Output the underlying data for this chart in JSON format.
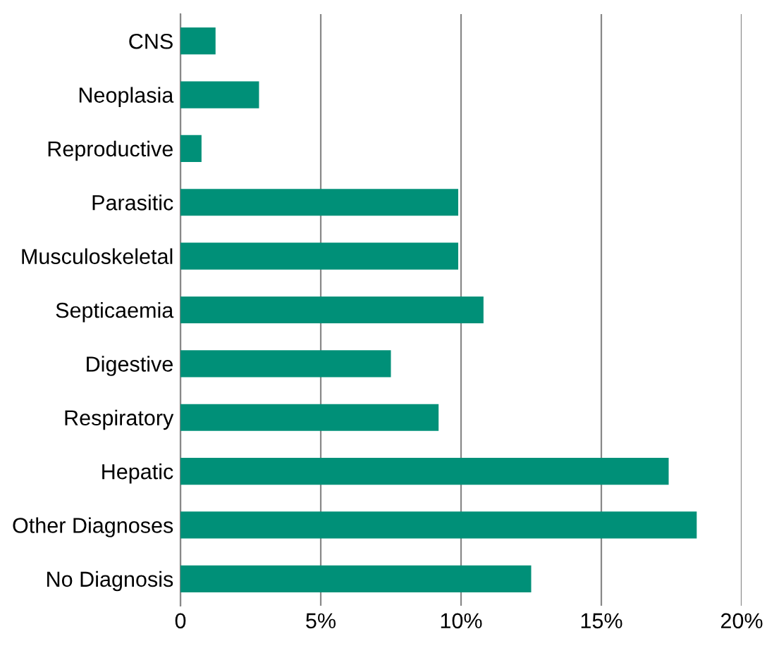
{
  "chart_data": {
    "type": "bar",
    "orientation": "horizontal",
    "categories": [
      "CNS",
      "Neoplasia",
      "Reproductive",
      "Parasitic",
      "Musculoskeletal",
      "Septicaemia",
      "Digestive",
      "Respiratory",
      "Hepatic",
      "Other Diagnoses",
      "No Diagnosis"
    ],
    "values": [
      1.25,
      2.8,
      0.75,
      9.9,
      9.9,
      10.8,
      7.5,
      9.2,
      17.4,
      18.4,
      12.5
    ],
    "color": "#009078",
    "xlim": [
      0,
      20
    ],
    "xticks": [
      {
        "value": 0,
        "label": "0"
      },
      {
        "value": 5,
        "label": "5%"
      },
      {
        "value": 10,
        "label": "10%"
      },
      {
        "value": 15,
        "label": "15%"
      },
      {
        "value": 20,
        "label": "20%"
      }
    ],
    "grid": "x",
    "legend": false
  }
}
